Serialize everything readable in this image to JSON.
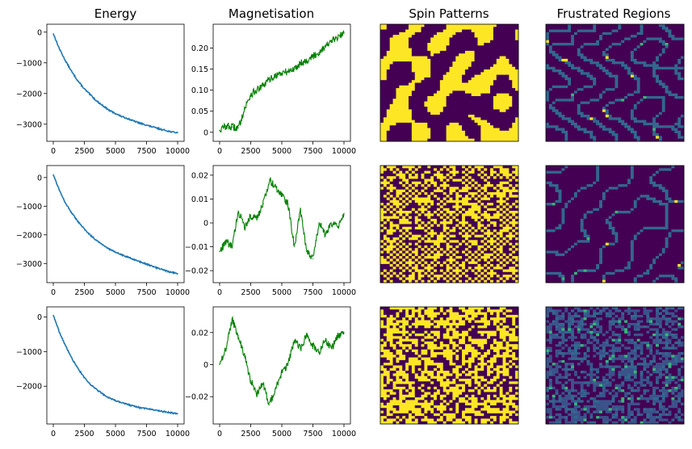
{
  "figure": {
    "column_titles": [
      "Energy",
      "Magnetisation",
      "Spin Patterns",
      "Frustrated Regions"
    ]
  },
  "chart_data": [
    {
      "type": "line",
      "panel": "energy-row-1",
      "title": "Energy",
      "color": "#1f77b4",
      "xlim": [
        0,
        10000
      ],
      "ylim": [
        -3400,
        100
      ],
      "xticks": [
        0,
        2500,
        5000,
        7500,
        10000
      ],
      "yticks": [
        0,
        -1000,
        -2000,
        -3000
      ],
      "x": [
        0,
        500,
        1000,
        1500,
        2000,
        2500,
        3000,
        3500,
        4000,
        4500,
        5000,
        5500,
        6000,
        6500,
        7000,
        7500,
        8000,
        8500,
        9000,
        9500,
        10000
      ],
      "y": [
        -50,
        -550,
        -950,
        -1300,
        -1600,
        -1850,
        -2050,
        -2250,
        -2400,
        -2550,
        -2650,
        -2750,
        -2820,
        -2900,
        -2970,
        -3030,
        -3090,
        -3150,
        -3200,
        -3250,
        -3280
      ]
    },
    {
      "type": "line",
      "panel": "magnetisation-row-1",
      "title": "Magnetisation",
      "color": "#008000",
      "xlim": [
        0,
        10000
      ],
      "ylim": [
        -0.01,
        0.245
      ],
      "xticks": [
        0,
        2500,
        5000,
        7500,
        10000
      ],
      "yticks": [
        0.0,
        0.05,
        0.1,
        0.15,
        0.2
      ],
      "x": [
        0,
        500,
        1000,
        1500,
        2000,
        2500,
        3000,
        3500,
        4000,
        4500,
        5000,
        5500,
        6000,
        6500,
        7000,
        7500,
        8000,
        8500,
        9000,
        9500,
        10000
      ],
      "y": [
        0.005,
        0.015,
        0.012,
        0.01,
        0.055,
        0.09,
        0.1,
        0.11,
        0.125,
        0.135,
        0.14,
        0.145,
        0.15,
        0.165,
        0.17,
        0.18,
        0.19,
        0.205,
        0.215,
        0.225,
        0.235
      ]
    },
    {
      "type": "heatmap",
      "panel": "spin-row-1",
      "title": "Spin Patterns",
      "colors": [
        "#440154",
        "#fde725"
      ],
      "pattern": "domains"
    },
    {
      "type": "heatmap",
      "panel": "frustrated-row-1",
      "title": "Frustrated Regions",
      "colors": [
        "#440154",
        "#31688e",
        "#35b779",
        "#fde725"
      ],
      "pattern": "walls"
    },
    {
      "type": "line",
      "panel": "energy-row-2",
      "color": "#1f77b4",
      "xlim": [
        0,
        10000
      ],
      "ylim": [
        -3500,
        250
      ],
      "xticks": [
        0,
        2500,
        5000,
        7500,
        10000
      ],
      "yticks": [
        0,
        -1000,
        -2000,
        -3000
      ],
      "x": [
        0,
        500,
        1000,
        1500,
        2000,
        2500,
        3000,
        3500,
        4000,
        4500,
        5000,
        5500,
        6000,
        6500,
        7000,
        7500,
        8000,
        8500,
        9000,
        9500,
        10000
      ],
      "y": [
        100,
        -450,
        -900,
        -1250,
        -1550,
        -1800,
        -2020,
        -2200,
        -2350,
        -2500,
        -2600,
        -2700,
        -2780,
        -2870,
        -2950,
        -3020,
        -3100,
        -3180,
        -3250,
        -3310,
        -3350
      ]
    },
    {
      "type": "line",
      "panel": "magnetisation-row-2",
      "color": "#008000",
      "xlim": [
        0,
        10000
      ],
      "ylim": [
        -0.023,
        0.022
      ],
      "xticks": [
        0,
        2500,
        5000,
        7500,
        10000
      ],
      "yticks": [
        0.02,
        0.01,
        0.0,
        -0.01,
        -0.02
      ],
      "x": [
        0,
        500,
        1000,
        1500,
        2000,
        2500,
        3000,
        3500,
        4000,
        4500,
        5000,
        5500,
        6000,
        6500,
        7000,
        7500,
        8000,
        8500,
        9000,
        9500,
        10000
      ],
      "y": [
        -0.012,
        -0.008,
        -0.01,
        0.005,
        -0.002,
        0.003,
        0.002,
        0.008,
        0.018,
        0.015,
        0.012,
        0.008,
        -0.01,
        0.005,
        -0.012,
        -0.015,
        0.0,
        -0.005,
        0.0,
        -0.002,
        0.004
      ]
    },
    {
      "type": "heatmap",
      "panel": "spin-row-2",
      "colors": [
        "#440154",
        "#fde725"
      ],
      "pattern": "checker"
    },
    {
      "type": "heatmap",
      "panel": "frustrated-row-2",
      "colors": [
        "#440154",
        "#31688e",
        "#35b779",
        "#fde725"
      ],
      "pattern": "walls"
    },
    {
      "type": "line",
      "panel": "energy-row-3",
      "color": "#1f77b4",
      "xlim": [
        0,
        10000
      ],
      "ylim": [
        -2950,
        150
      ],
      "xticks": [
        0,
        2500,
        5000,
        7500,
        10000
      ],
      "yticks": [
        0,
        -1000,
        -2000
      ],
      "x": [
        0,
        500,
        1000,
        1500,
        2000,
        2500,
        3000,
        3500,
        4000,
        4500,
        5000,
        5500,
        6000,
        6500,
        7000,
        7500,
        8000,
        8500,
        9000,
        9500,
        10000
      ],
      "y": [
        50,
        -450,
        -850,
        -1200,
        -1500,
        -1750,
        -1950,
        -2100,
        -2230,
        -2340,
        -2420,
        -2480,
        -2530,
        -2580,
        -2620,
        -2650,
        -2680,
        -2710,
        -2740,
        -2770,
        -2790
      ]
    },
    {
      "type": "line",
      "panel": "magnetisation-row-3",
      "color": "#008000",
      "xlim": [
        0,
        10000
      ],
      "ylim": [
        -0.034,
        0.033
      ],
      "xticks": [
        0,
        2500,
        5000,
        7500,
        10000
      ],
      "yticks": [
        0.02,
        0.0,
        -0.02
      ],
      "x": [
        0,
        500,
        1000,
        1500,
        2000,
        2500,
        3000,
        3500,
        4000,
        4500,
        5000,
        5500,
        6000,
        6500,
        7000,
        7500,
        8000,
        8500,
        9000,
        9500,
        10000
      ],
      "y": [
        0.0,
        0.01,
        0.028,
        0.018,
        0.005,
        -0.01,
        -0.018,
        -0.012,
        -0.025,
        -0.015,
        -0.005,
        0.0,
        0.015,
        0.01,
        0.018,
        0.012,
        0.008,
        0.015,
        0.01,
        0.018,
        0.02
      ]
    },
    {
      "type": "heatmap",
      "panel": "spin-row-3",
      "colors": [
        "#440154",
        "#fde725"
      ],
      "pattern": "random"
    },
    {
      "type": "heatmap",
      "panel": "frustrated-row-3",
      "colors": [
        "#440154",
        "#3b528b",
        "#31688e",
        "#35b779"
      ],
      "pattern": "noise"
    }
  ]
}
